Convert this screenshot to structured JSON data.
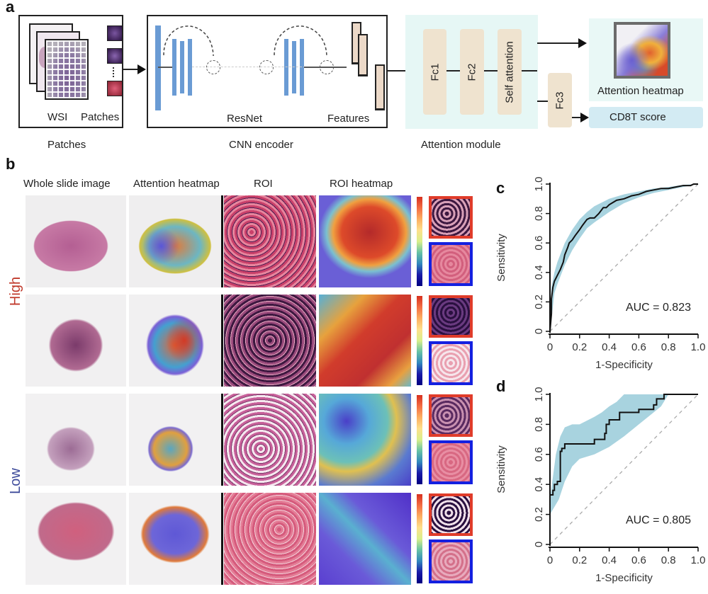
{
  "panels": {
    "a": {
      "letter": "a",
      "patches_box": {
        "wsi_label": "WSI",
        "patches_label": "Patches",
        "caption": "Patches"
      },
      "cnn_box": {
        "resnet_label": "ResNet",
        "features_label": "Features",
        "caption": "CNN encoder"
      },
      "attention_module": {
        "fc1": "Fc1",
        "fc2": "Fc2",
        "self_attention": "Self attention",
        "fc3": "Fc3",
        "caption": "Attention module"
      },
      "outputs": {
        "heatmap_label": "Attention heatmap",
        "score_label": "CD8T score"
      },
      "colors": {
        "resnet_blue": "#6a9bd4",
        "feature_beige": "#ecd9c8",
        "module_bg": "#e6f7f5",
        "fc_beige": "#efe3cf",
        "score_bg": "#d3ebf3"
      }
    },
    "b": {
      "letter": "b",
      "column_headers": [
        "Whole slide image",
        "Attention heatmap",
        "ROI",
        "ROI heatmap"
      ],
      "group_labels": {
        "high": "High",
        "low": "Low"
      },
      "group_colors": {
        "high": "#c0392b",
        "low": "#3d4a9a"
      },
      "rows": [
        {
          "group": "High",
          "index": 1
        },
        {
          "group": "High",
          "index": 2
        },
        {
          "group": "Low",
          "index": 3
        },
        {
          "group": "Low",
          "index": 4
        }
      ],
      "thumb_border_colors": {
        "high_attention": "#e03c2a",
        "low_attention": "#1420e0"
      }
    }
  },
  "chart_data": [
    {
      "panel": "c",
      "type": "line",
      "title": "",
      "xlabel": "1-Specificity",
      "ylabel": "Sensitivity",
      "xlim": [
        0,
        1.0
      ],
      "ylim": [
        0,
        1.0
      ],
      "xticks": [
        "0",
        "0.2",
        "0.4",
        "0.6",
        "0.8",
        "1.0"
      ],
      "yticks": [
        "0",
        "0.2",
        "0.4",
        "0.6",
        "0.8",
        "1.0"
      ],
      "annotation": "AUC = 0.823",
      "grid": false,
      "reference_line": "diagonal dashed",
      "ci_color": "#a8d3df",
      "series": [
        {
          "name": "ROC",
          "x": [
            0,
            0.01,
            0.01,
            0.02,
            0.03,
            0.05,
            0.07,
            0.09,
            0.1,
            0.12,
            0.13,
            0.15,
            0.17,
            0.2,
            0.22,
            0.25,
            0.27,
            0.3,
            0.33,
            0.36,
            0.38,
            0.4,
            0.45,
            0.5,
            0.55,
            0.6,
            0.65,
            0.7,
            0.75,
            0.8,
            0.85,
            0.9,
            0.95,
            0.97,
            1.0
          ],
          "y": [
            0,
            0.12,
            0.22,
            0.3,
            0.34,
            0.38,
            0.42,
            0.47,
            0.52,
            0.57,
            0.6,
            0.62,
            0.65,
            0.69,
            0.72,
            0.76,
            0.77,
            0.77,
            0.8,
            0.84,
            0.84,
            0.86,
            0.89,
            0.9,
            0.92,
            0.93,
            0.95,
            0.96,
            0.97,
            0.97,
            0.98,
            0.99,
            0.99,
            1.0,
            1.0
          ]
        },
        {
          "name": "CI upper",
          "x": [
            0,
            0.01,
            0.03,
            0.05,
            0.1,
            0.15,
            0.2,
            0.25,
            0.3,
            0.4,
            0.5,
            0.6,
            0.7,
            0.8,
            0.9,
            1.0
          ],
          "y": [
            0.05,
            0.3,
            0.4,
            0.47,
            0.6,
            0.69,
            0.76,
            0.81,
            0.85,
            0.9,
            0.93,
            0.95,
            0.97,
            0.98,
            0.995,
            1.0
          ]
        },
        {
          "name": "CI lower",
          "x": [
            0,
            0.01,
            0.03,
            0.05,
            0.1,
            0.15,
            0.2,
            0.25,
            0.3,
            0.4,
            0.5,
            0.6,
            0.7,
            0.8,
            0.9,
            1.0
          ],
          "y": [
            0,
            0.08,
            0.26,
            0.32,
            0.45,
            0.55,
            0.63,
            0.7,
            0.74,
            0.81,
            0.87,
            0.91,
            0.94,
            0.96,
            0.98,
            1.0
          ]
        }
      ]
    },
    {
      "panel": "d",
      "type": "line",
      "title": "",
      "xlabel": "1-Specificity",
      "ylabel": "Sensitivity",
      "xlim": [
        0,
        1.0
      ],
      "ylim": [
        0,
        1.0
      ],
      "xticks": [
        "0",
        "0.2",
        "0.4",
        "0.6",
        "0.8",
        "1.0"
      ],
      "yticks": [
        "0",
        "0.2",
        "0.4",
        "0.6",
        "0.8",
        "1.0"
      ],
      "annotation": "AUC = 0.805",
      "grid": false,
      "reference_line": "diagonal dashed",
      "ci_color": "#a8d3df",
      "series": [
        {
          "name": "ROC",
          "x": [
            0,
            0,
            0.02,
            0.02,
            0.03,
            0.03,
            0.05,
            0.05,
            0.07,
            0.07,
            0.08,
            0.08,
            0.1,
            0.1,
            0.3,
            0.3,
            0.37,
            0.37,
            0.38,
            0.38,
            0.4,
            0.4,
            0.47,
            0.47,
            0.6,
            0.6,
            0.7,
            0.7,
            0.72,
            0.72,
            0.77,
            0.77,
            1.0
          ],
          "y": [
            0,
            0.33,
            0.33,
            0.36,
            0.36,
            0.4,
            0.4,
            0.42,
            0.42,
            0.62,
            0.62,
            0.64,
            0.64,
            0.67,
            0.67,
            0.7,
            0.7,
            0.74,
            0.74,
            0.8,
            0.8,
            0.83,
            0.83,
            0.88,
            0.88,
            0.9,
            0.9,
            0.93,
            0.93,
            0.97,
            0.97,
            1.0,
            1.0
          ]
        },
        {
          "name": "CI upper",
          "x": [
            0,
            0.02,
            0.04,
            0.07,
            0.1,
            0.15,
            0.2,
            0.3,
            0.35,
            0.4,
            0.45,
            0.5,
            0.6,
            1.0
          ],
          "y": [
            0.3,
            0.45,
            0.6,
            0.72,
            0.78,
            0.8,
            0.8,
            0.85,
            0.88,
            0.92,
            0.95,
            1.0,
            1.0,
            1.0
          ]
        },
        {
          "name": "CI lower",
          "x": [
            0,
            0.03,
            0.06,
            0.1,
            0.15,
            0.2,
            0.3,
            0.4,
            0.5,
            0.6,
            0.7,
            0.75,
            0.8,
            1.0
          ],
          "y": [
            0.2,
            0.25,
            0.3,
            0.42,
            0.52,
            0.57,
            0.6,
            0.65,
            0.72,
            0.8,
            0.88,
            0.92,
            1.0,
            1.0
          ]
        }
      ]
    }
  ]
}
